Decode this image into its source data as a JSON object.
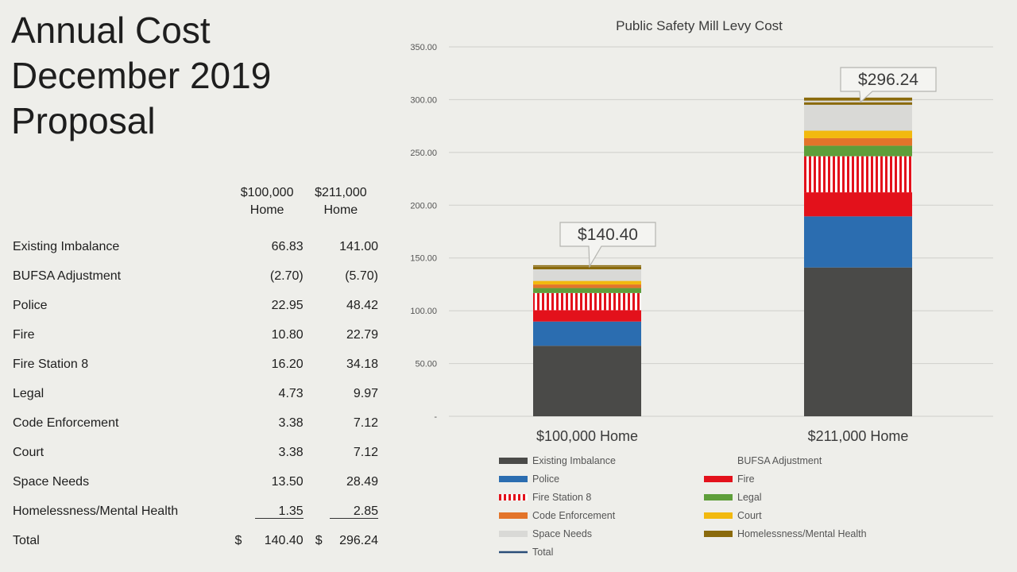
{
  "slide": {
    "title_lines": [
      "Annual Cost",
      "December 2019",
      "Proposal"
    ]
  },
  "table": {
    "col1_header": [
      "$100,000",
      "Home"
    ],
    "col2_header": [
      "$211,000",
      "Home"
    ],
    "rows": [
      {
        "label": "Existing Imbalance",
        "v1": "66.83",
        "v2": "141.00"
      },
      {
        "label": "BUFSA Adjustment",
        "v1": "(2.70)",
        "v2": "(5.70)"
      },
      {
        "label": "Police",
        "v1": "22.95",
        "v2": "48.42"
      },
      {
        "label": "Fire",
        "v1": "10.80",
        "v2": "22.79"
      },
      {
        "label": "Fire Station 8",
        "v1": "16.20",
        "v2": "34.18"
      },
      {
        "label": "Legal",
        "v1": "4.73",
        "v2": "9.97"
      },
      {
        "label": "Code Enforcement",
        "v1": "3.38",
        "v2": "7.12"
      },
      {
        "label": "Court",
        "v1": "3.38",
        "v2": "7.12"
      },
      {
        "label": "Space Needs",
        "v1": "13.50",
        "v2": "28.49"
      },
      {
        "label": "Homelessness/Mental Health",
        "v1": "1.35",
        "v2": "2.85"
      }
    ],
    "total": {
      "label": "Total",
      "currency": "$",
      "v1": "140.40",
      "v2": "296.24"
    }
  },
  "chart_data": {
    "type": "bar",
    "stacked": true,
    "title": "Public Safety Mill Levy Cost",
    "categories": [
      "$100,000 Home",
      "$211,000 Home"
    ],
    "ylim": [
      0,
      350
    ],
    "yticks": [
      "-",
      "50.00",
      "100.00",
      "150.00",
      "200.00",
      "250.00",
      "300.00",
      "350.00"
    ],
    "grid": true,
    "legend_position": "bottom",
    "series": [
      {
        "name": "Existing Imbalance",
        "values": [
          66.83,
          141.0
        ],
        "color": "#4a4a48"
      },
      {
        "name": "BUFSA Adjustment",
        "values": [
          -2.7,
          -5.7
        ],
        "color": "#eeeeea"
      },
      {
        "name": "Police",
        "values": [
          22.95,
          48.42
        ],
        "color": "#2b6db0"
      },
      {
        "name": "Fire",
        "values": [
          10.8,
          22.79
        ],
        "color": "#e3111b"
      },
      {
        "name": "Fire Station 8",
        "values": [
          16.2,
          34.18
        ],
        "color": "#e3111b",
        "pattern": "stripes"
      },
      {
        "name": "Legal",
        "values": [
          4.73,
          9.97
        ],
        "color": "#5e9e3a"
      },
      {
        "name": "Code Enforcement",
        "values": [
          3.38,
          7.12
        ],
        "color": "#e3742a"
      },
      {
        "name": "Court",
        "values": [
          3.38,
          7.12
        ],
        "color": "#f2b90f"
      },
      {
        "name": "Space Needs",
        "values": [
          13.5,
          28.49
        ],
        "color": "#d9d9d6"
      },
      {
        "name": "Homelessness/Mental Health",
        "values": [
          1.35,
          2.85
        ],
        "color": "#8a6a0c"
      }
    ],
    "total_series": {
      "name": "Total",
      "values": [
        140.4,
        296.24
      ],
      "color": "#2a4d78"
    },
    "annotations": [
      "$140.40",
      "$296.24"
    ]
  }
}
